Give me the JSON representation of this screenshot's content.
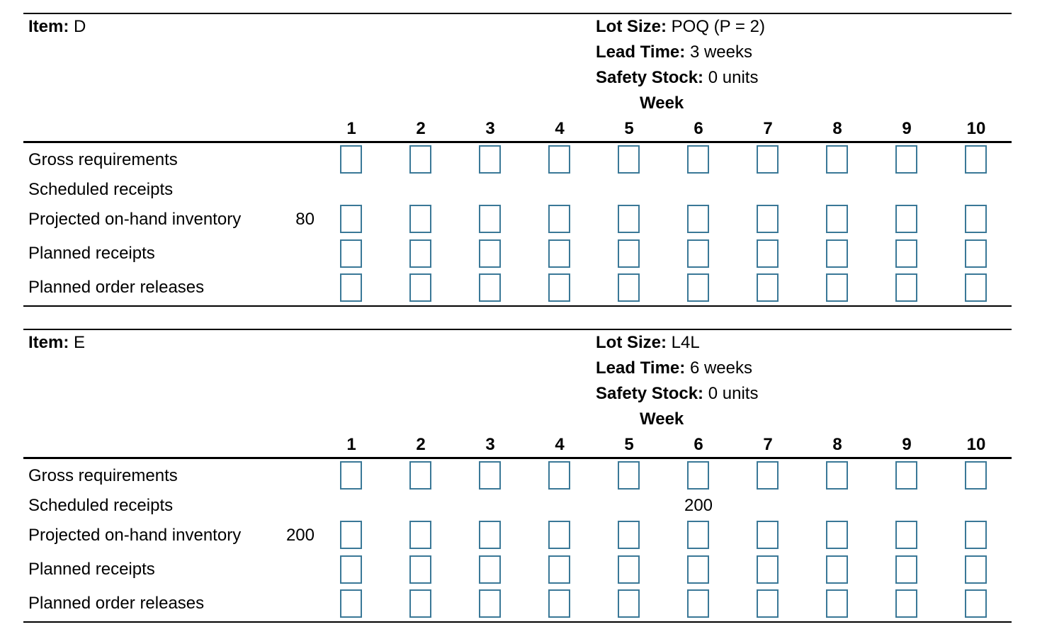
{
  "weeks_header": "Week",
  "weeks": [
    "1",
    "2",
    "3",
    "4",
    "5",
    "6",
    "7",
    "8",
    "9",
    "10"
  ],
  "row_labels": {
    "gross": "Gross requirements",
    "scheduled": "Scheduled receipts",
    "projected": "Projected on-hand inventory",
    "planned_receipts": "Planned receipts",
    "planned_releases": "Planned order releases"
  },
  "panels": [
    {
      "item_label": "Item:",
      "item_value": "D",
      "lot_size_label": "Lot Size:",
      "lot_size_value": "POQ (P = 2)",
      "lead_time_label": "Lead Time:",
      "lead_time_value": "3 weeks",
      "safety_stock_label": "Safety Stock:",
      "safety_stock_value": "0 units",
      "initial_inventory": "80",
      "scheduled_receipts": [
        "",
        "",
        "",
        "",
        "",
        "",
        "",
        "",
        "",
        ""
      ]
    },
    {
      "item_label": "Item:",
      "item_value": "E",
      "lot_size_label": "Lot Size:",
      "lot_size_value": "L4L",
      "lead_time_label": "Lead Time:",
      "lead_time_value": "6 weeks",
      "safety_stock_label": "Safety Stock:",
      "safety_stock_value": "0 units",
      "initial_inventory": "200",
      "scheduled_receipts": [
        "",
        "",
        "",
        "",
        "",
        "200",
        "",
        "",
        "",
        ""
      ]
    }
  ],
  "colors": {
    "input_border": "#3a7897",
    "rule": "#000000"
  }
}
